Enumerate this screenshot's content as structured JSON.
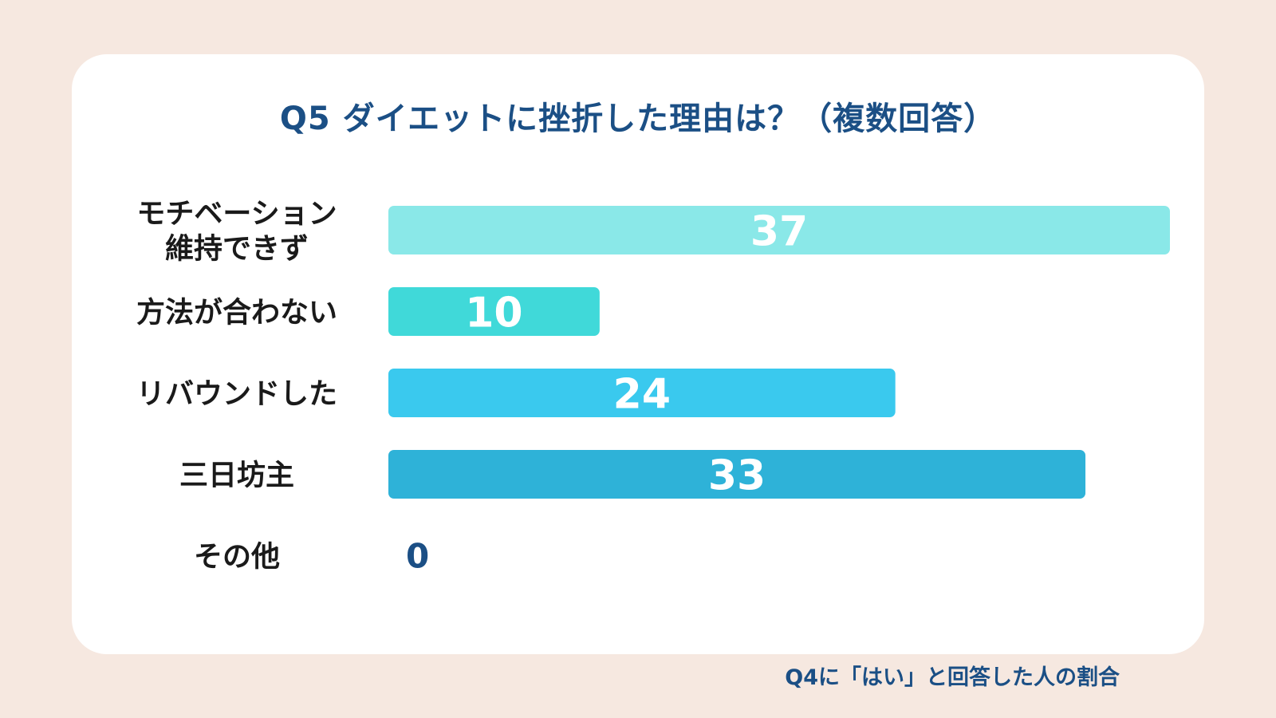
{
  "chart_data": {
    "type": "bar",
    "orientation": "horizontal",
    "title": "Q5 ダイエットに挫折した理由は？（複数回答）",
    "categories": [
      [
        "モチベーション",
        "維持できず"
      ],
      [
        "方法が合わない"
      ],
      [
        "リバウンドした"
      ],
      [
        "三日坊主"
      ],
      [
        "その他"
      ]
    ],
    "values": [
      37,
      10,
      24,
      33,
      0
    ],
    "bar_colors": [
      "#8ae8e8",
      "#40d9d9",
      "#3ac9ee",
      "#2eb2d8",
      "#2eb2d8"
    ],
    "value_label_color_inside": "#ffffff",
    "value_label_color_outside": "#1b4f85",
    "xlim": [
      0,
      37
    ],
    "grid": false,
    "legend": "none"
  },
  "footnote": "Q4に「はい」と回答した人の割合",
  "colors": {
    "background": "#f6e8e0",
    "card": "#ffffff",
    "title": "#1b4f85",
    "label": "#1a1a1a"
  }
}
